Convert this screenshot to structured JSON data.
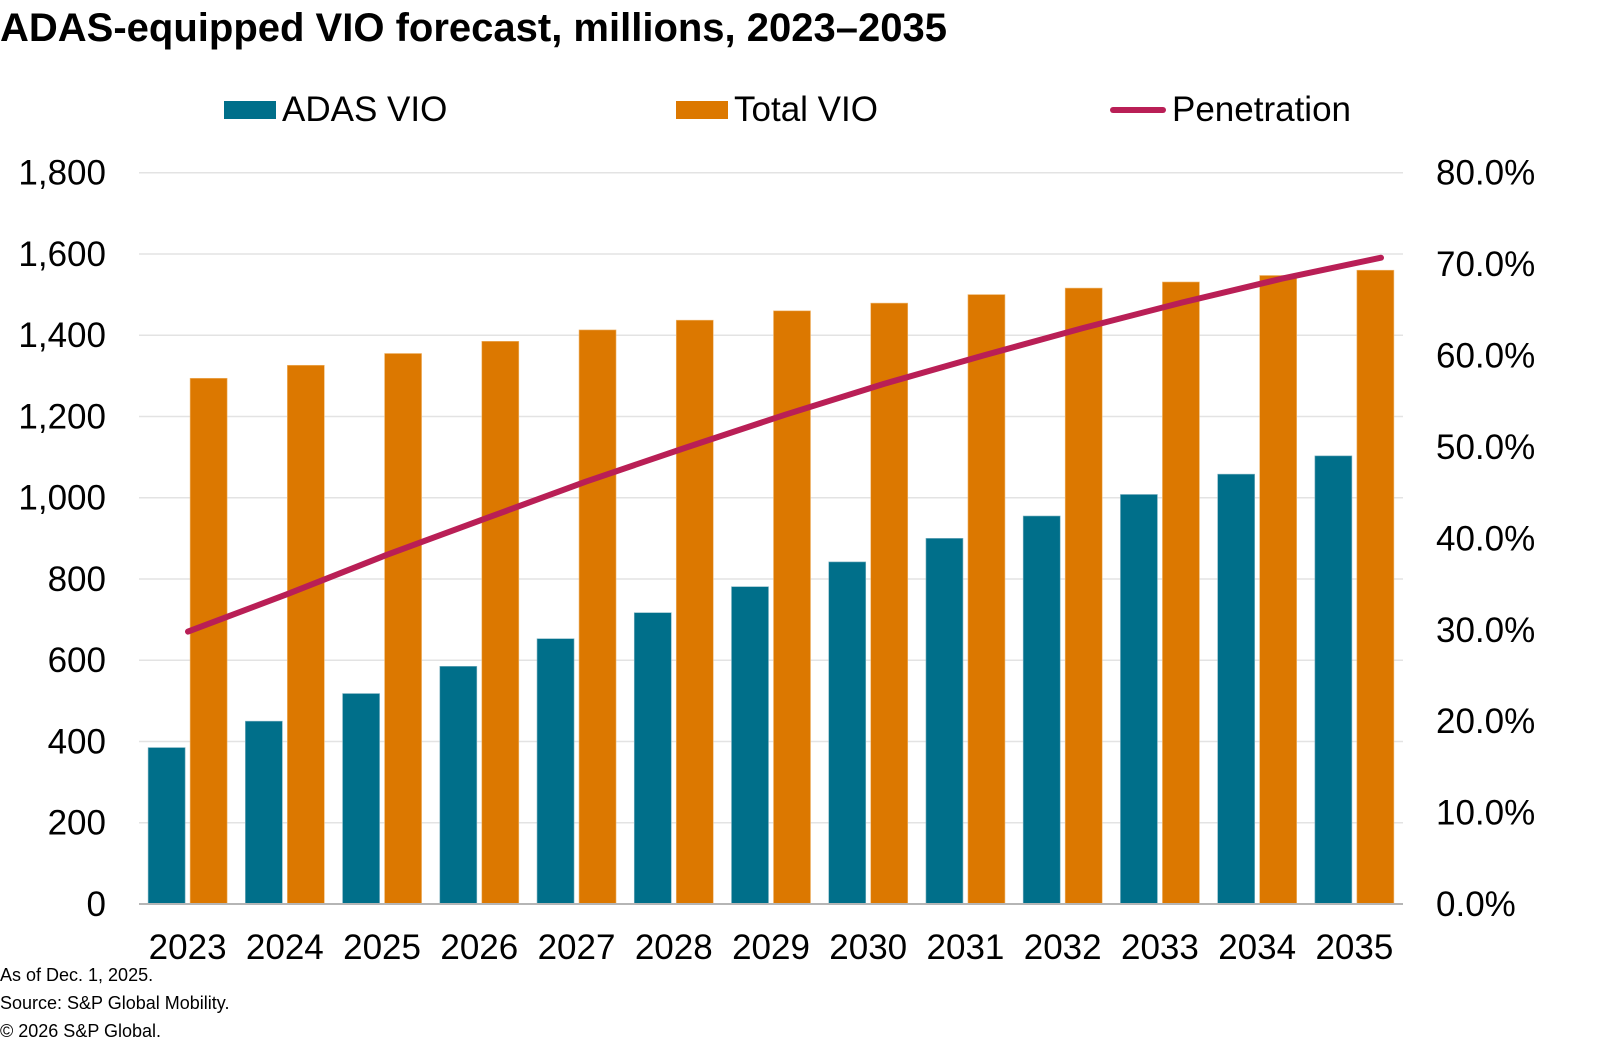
{
  "title": "ADAS-equipped VIO forecast, millions, 2023–2035",
  "legend": {
    "adas": "ADAS VIO",
    "total": "Total VIO",
    "penetration": "Penetration"
  },
  "colors": {
    "adas": "#006f8a",
    "total": "#dc7800",
    "penetration": "#b91f56",
    "gridline": "#e3e3e3",
    "axis": "#b5b5b5"
  },
  "footer": {
    "as_of": "As of Dec. 1, 2025.",
    "source": "Source: S&P Global Mobility.",
    "copyright": "© 2026 S&P Global."
  },
  "chart_data": {
    "type": "bar",
    "title": "ADAS-equipped VIO forecast, millions, 2023–2035",
    "xlabel": "",
    "ylabel": "",
    "categories": [
      "2023",
      "2024",
      "2025",
      "2026",
      "2027",
      "2028",
      "2029",
      "2030",
      "2031",
      "2032",
      "2033",
      "2034",
      "2035"
    ],
    "series": [
      {
        "name": "ADAS VIO",
        "type": "bar",
        "axis": "left",
        "values": [
          385,
          450,
          518,
          585,
          653,
          717,
          781,
          842,
          900,
          955,
          1008,
          1058,
          1103
        ]
      },
      {
        "name": "Total VIO",
        "type": "bar",
        "axis": "left",
        "values": [
          1294,
          1326,
          1355,
          1385,
          1413,
          1437,
          1460,
          1479,
          1500,
          1516,
          1531,
          1547,
          1560
        ]
      },
      {
        "name": "Penetration",
        "type": "line",
        "axis": "right",
        "values": [
          29.8,
          33.9,
          38.2,
          42.2,
          46.2,
          49.9,
          53.5,
          56.9,
          60.0,
          63.0,
          65.8,
          68.4,
          70.7
        ]
      }
    ],
    "ylim": [
      0,
      1800
    ],
    "y_ticks": [
      0,
      200,
      400,
      600,
      800,
      1000,
      1200,
      1400,
      1600,
      1800
    ],
    "y_tick_labels": [
      "0",
      "200",
      "400",
      "600",
      "800",
      "1,000",
      "1,200",
      "1,400",
      "1,600",
      "1,800"
    ],
    "y2lim": [
      0,
      80
    ],
    "y2_ticks": [
      0,
      10,
      20,
      30,
      40,
      50,
      60,
      70,
      80
    ],
    "y2_tick_labels": [
      "0.0%",
      "10.0%",
      "20.0%",
      "30.0%",
      "40.0%",
      "50.0%",
      "60.0%",
      "70.0%",
      "80.0%"
    ],
    "grid": true,
    "legend_position": "top"
  }
}
